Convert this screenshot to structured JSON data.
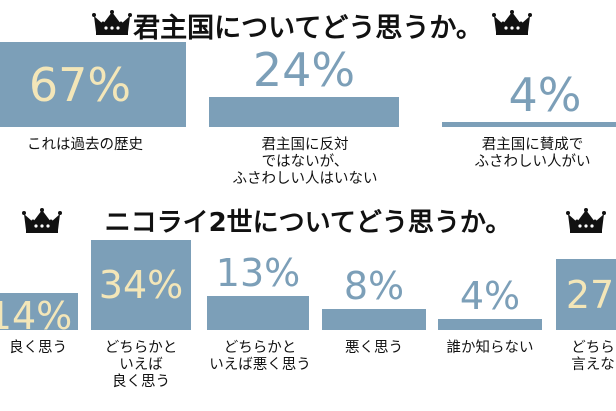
{
  "colors": {
    "bar": "#7c9fb8",
    "value_light": "#f3e6b8",
    "value_dark": "#7c9fb8",
    "text": "#111111"
  },
  "icons": {
    "crown": "crown-icon"
  },
  "chart_data": [
    {
      "type": "bar",
      "title": "君主国についてどう思うか。",
      "categories": [
        "これは過去の歴史",
        "君主国に反対\nではないが、\nふさわしい人はいない",
        "君主国に賛成で\nふさわしい人がい"
      ],
      "values": [
        67,
        24,
        4
      ],
      "value_labels": [
        "67%",
        "24%",
        "4%"
      ],
      "ylim": [
        0,
        67
      ]
    },
    {
      "type": "bar",
      "title": "ニコライ2世についてどう思うか。",
      "categories": [
        "良く思う",
        "どちらかと\nいえば\n良く思う",
        "どちらかと\nいえば悪く思う",
        "悪く思う",
        "誰か知らない",
        "どちら\n言えな"
      ],
      "values": [
        14,
        34,
        13,
        8,
        4,
        27
      ],
      "value_labels": [
        "14%",
        "34%",
        "13%",
        "8%",
        "4%",
        "27"
      ],
      "ylim": [
        0,
        34
      ]
    }
  ]
}
